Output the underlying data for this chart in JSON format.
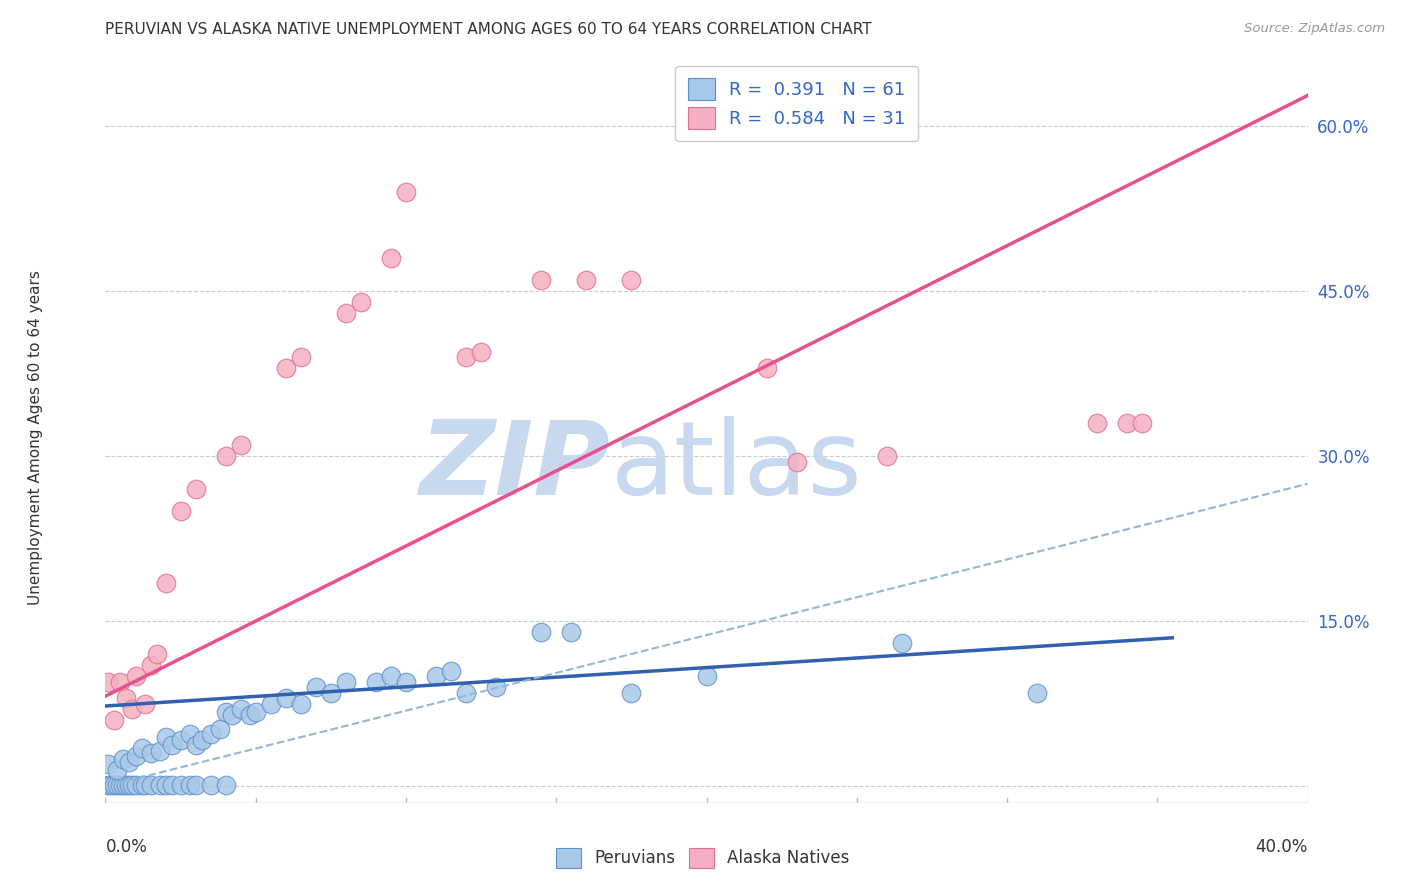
{
  "title": "PERUVIAN VS ALASKA NATIVE UNEMPLOYMENT AMONG AGES 60 TO 64 YEARS CORRELATION CHART",
  "source": "Source: ZipAtlas.com",
  "ylabel": "Unemployment Among Ages 60 to 64 years",
  "right_yticks": [
    0.0,
    0.15,
    0.3,
    0.45,
    0.6
  ],
  "right_yticklabels": [
    "",
    "15.0%",
    "30.0%",
    "45.0%",
    "60.0%"
  ],
  "xmin": 0.0,
  "xmax": 0.4,
  "ymin": -0.015,
  "ymax": 0.65,
  "legend_blue_label": "R =  0.391   N = 61",
  "legend_pink_label": "R =  0.584   N = 31",
  "blue_color": "#A8C8E8",
  "pink_color": "#F4B0C0",
  "blue_edge_color": "#6090CC",
  "pink_edge_color": "#E07090",
  "blue_line_color": "#3060B0",
  "pink_line_color": "#E85090",
  "dash_line_color": "#90B8D8",
  "blue_line_x0": 0.0,
  "blue_line_y0": 0.073,
  "blue_line_x1": 0.355,
  "blue_line_y1": 0.135,
  "pink_line_x0": 0.0,
  "pink_line_y0": 0.082,
  "pink_line_x1": 0.4,
  "pink_line_y1": 0.628,
  "dash_line_x0": 0.0,
  "dash_line_y0": 0.0,
  "dash_line_x1": 0.4,
  "dash_line_y1": 0.275,
  "blue_scatter": [
    [
      0.001,
      0.001
    ],
    [
      0.002,
      0.001
    ],
    [
      0.003,
      0.001
    ],
    [
      0.004,
      0.001
    ],
    [
      0.005,
      0.001
    ],
    [
      0.006,
      0.001
    ],
    [
      0.007,
      0.001
    ],
    [
      0.008,
      0.001
    ],
    [
      0.009,
      0.001
    ],
    [
      0.01,
      0.001
    ],
    [
      0.012,
      0.001
    ],
    [
      0.013,
      0.001
    ],
    [
      0.015,
      0.001
    ],
    [
      0.018,
      0.001
    ],
    [
      0.02,
      0.001
    ],
    [
      0.022,
      0.001
    ],
    [
      0.025,
      0.001
    ],
    [
      0.028,
      0.001
    ],
    [
      0.03,
      0.001
    ],
    [
      0.035,
      0.001
    ],
    [
      0.04,
      0.001
    ],
    [
      0.001,
      0.02
    ],
    [
      0.004,
      0.015
    ],
    [
      0.006,
      0.025
    ],
    [
      0.008,
      0.022
    ],
    [
      0.01,
      0.028
    ],
    [
      0.012,
      0.035
    ],
    [
      0.015,
      0.03
    ],
    [
      0.018,
      0.032
    ],
    [
      0.02,
      0.045
    ],
    [
      0.022,
      0.038
    ],
    [
      0.025,
      0.042
    ],
    [
      0.028,
      0.048
    ],
    [
      0.03,
      0.038
    ],
    [
      0.032,
      0.042
    ],
    [
      0.035,
      0.048
    ],
    [
      0.038,
      0.052
    ],
    [
      0.04,
      0.068
    ],
    [
      0.042,
      0.065
    ],
    [
      0.045,
      0.07
    ],
    [
      0.048,
      0.065
    ],
    [
      0.05,
      0.068
    ],
    [
      0.055,
      0.075
    ],
    [
      0.06,
      0.08
    ],
    [
      0.065,
      0.075
    ],
    [
      0.07,
      0.09
    ],
    [
      0.075,
      0.085
    ],
    [
      0.08,
      0.095
    ],
    [
      0.09,
      0.095
    ],
    [
      0.095,
      0.1
    ],
    [
      0.1,
      0.095
    ],
    [
      0.11,
      0.1
    ],
    [
      0.115,
      0.105
    ],
    [
      0.12,
      0.085
    ],
    [
      0.13,
      0.09
    ],
    [
      0.145,
      0.14
    ],
    [
      0.155,
      0.14
    ],
    [
      0.175,
      0.085
    ],
    [
      0.2,
      0.1
    ],
    [
      0.265,
      0.13
    ],
    [
      0.31,
      0.085
    ]
  ],
  "pink_scatter": [
    [
      0.001,
      0.095
    ],
    [
      0.003,
      0.06
    ],
    [
      0.005,
      0.095
    ],
    [
      0.007,
      0.08
    ],
    [
      0.009,
      0.07
    ],
    [
      0.01,
      0.1
    ],
    [
      0.013,
      0.075
    ],
    [
      0.015,
      0.11
    ],
    [
      0.017,
      0.12
    ],
    [
      0.02,
      0.185
    ],
    [
      0.025,
      0.25
    ],
    [
      0.03,
      0.27
    ],
    [
      0.04,
      0.3
    ],
    [
      0.045,
      0.31
    ],
    [
      0.06,
      0.38
    ],
    [
      0.065,
      0.39
    ],
    [
      0.08,
      0.43
    ],
    [
      0.085,
      0.44
    ],
    [
      0.095,
      0.48
    ],
    [
      0.1,
      0.54
    ],
    [
      0.12,
      0.39
    ],
    [
      0.125,
      0.395
    ],
    [
      0.145,
      0.46
    ],
    [
      0.16,
      0.46
    ],
    [
      0.175,
      0.46
    ],
    [
      0.22,
      0.38
    ],
    [
      0.23,
      0.295
    ],
    [
      0.26,
      0.3
    ],
    [
      0.33,
      0.33
    ],
    [
      0.34,
      0.33
    ],
    [
      0.345,
      0.33
    ]
  ],
  "watermark_zip": "ZIP",
  "watermark_atlas": "atlas",
  "watermark_color": "#C8D8EE",
  "background_color": "#FFFFFF"
}
